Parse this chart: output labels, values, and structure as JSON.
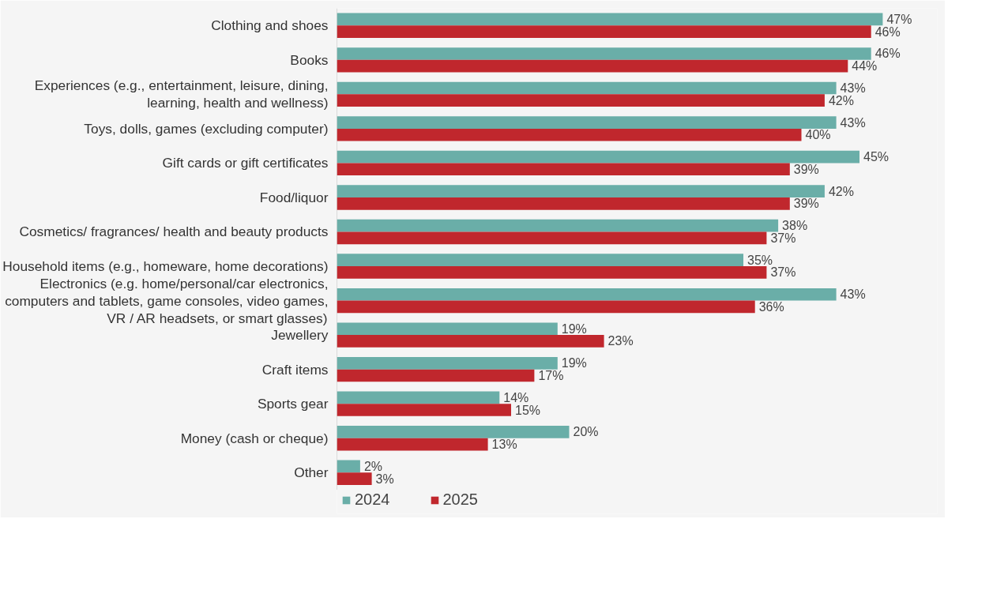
{
  "chart_data": {
    "type": "bar",
    "orientation": "horizontal",
    "categories": [
      "Clothing and shoes",
      "Books",
      "Experiences (e.g., entertainment, leisure, dining, learning, health and wellness)",
      "Toys, dolls, games (excluding computer)",
      "Gift cards or gift certificates",
      "Food/liquor",
      "Cosmetics/ fragrances/ health and beauty products",
      "Household items (e.g., homeware, home decorations)",
      "Electronics (e.g. home/personal/car electronics, computers and tablets, game consoles, video games, VR / AR headsets, or smart glasses)",
      "Jewellery",
      "Craft items",
      "Sports gear",
      "Money (cash or cheque)",
      "Other"
    ],
    "series": [
      {
        "name": "2024",
        "color": "#6aaea8",
        "values": [
          47,
          46,
          43,
          43,
          45,
          42,
          38,
          35,
          43,
          19,
          19,
          14,
          20,
          2
        ],
        "value_labels": [
          "47%",
          "46%",
          "43%",
          "43%",
          "45%",
          "42%",
          "38%",
          "35%",
          "43%",
          "19%",
          "19%",
          "14%",
          "20%",
          "2%"
        ]
      },
      {
        "name": "2025",
        "color": "#c0272d",
        "values": [
          46,
          44,
          42,
          40,
          39,
          39,
          37,
          37,
          36,
          23,
          17,
          15,
          13,
          3
        ],
        "value_labels": [
          "46%",
          "44%",
          "42%",
          "40%",
          "39%",
          "39%",
          "37%",
          "37%",
          "36%",
          "23%",
          "17%",
          "15%",
          "13%",
          "3%"
        ]
      }
    ],
    "legend": "bottom left",
    "grid": false
  }
}
